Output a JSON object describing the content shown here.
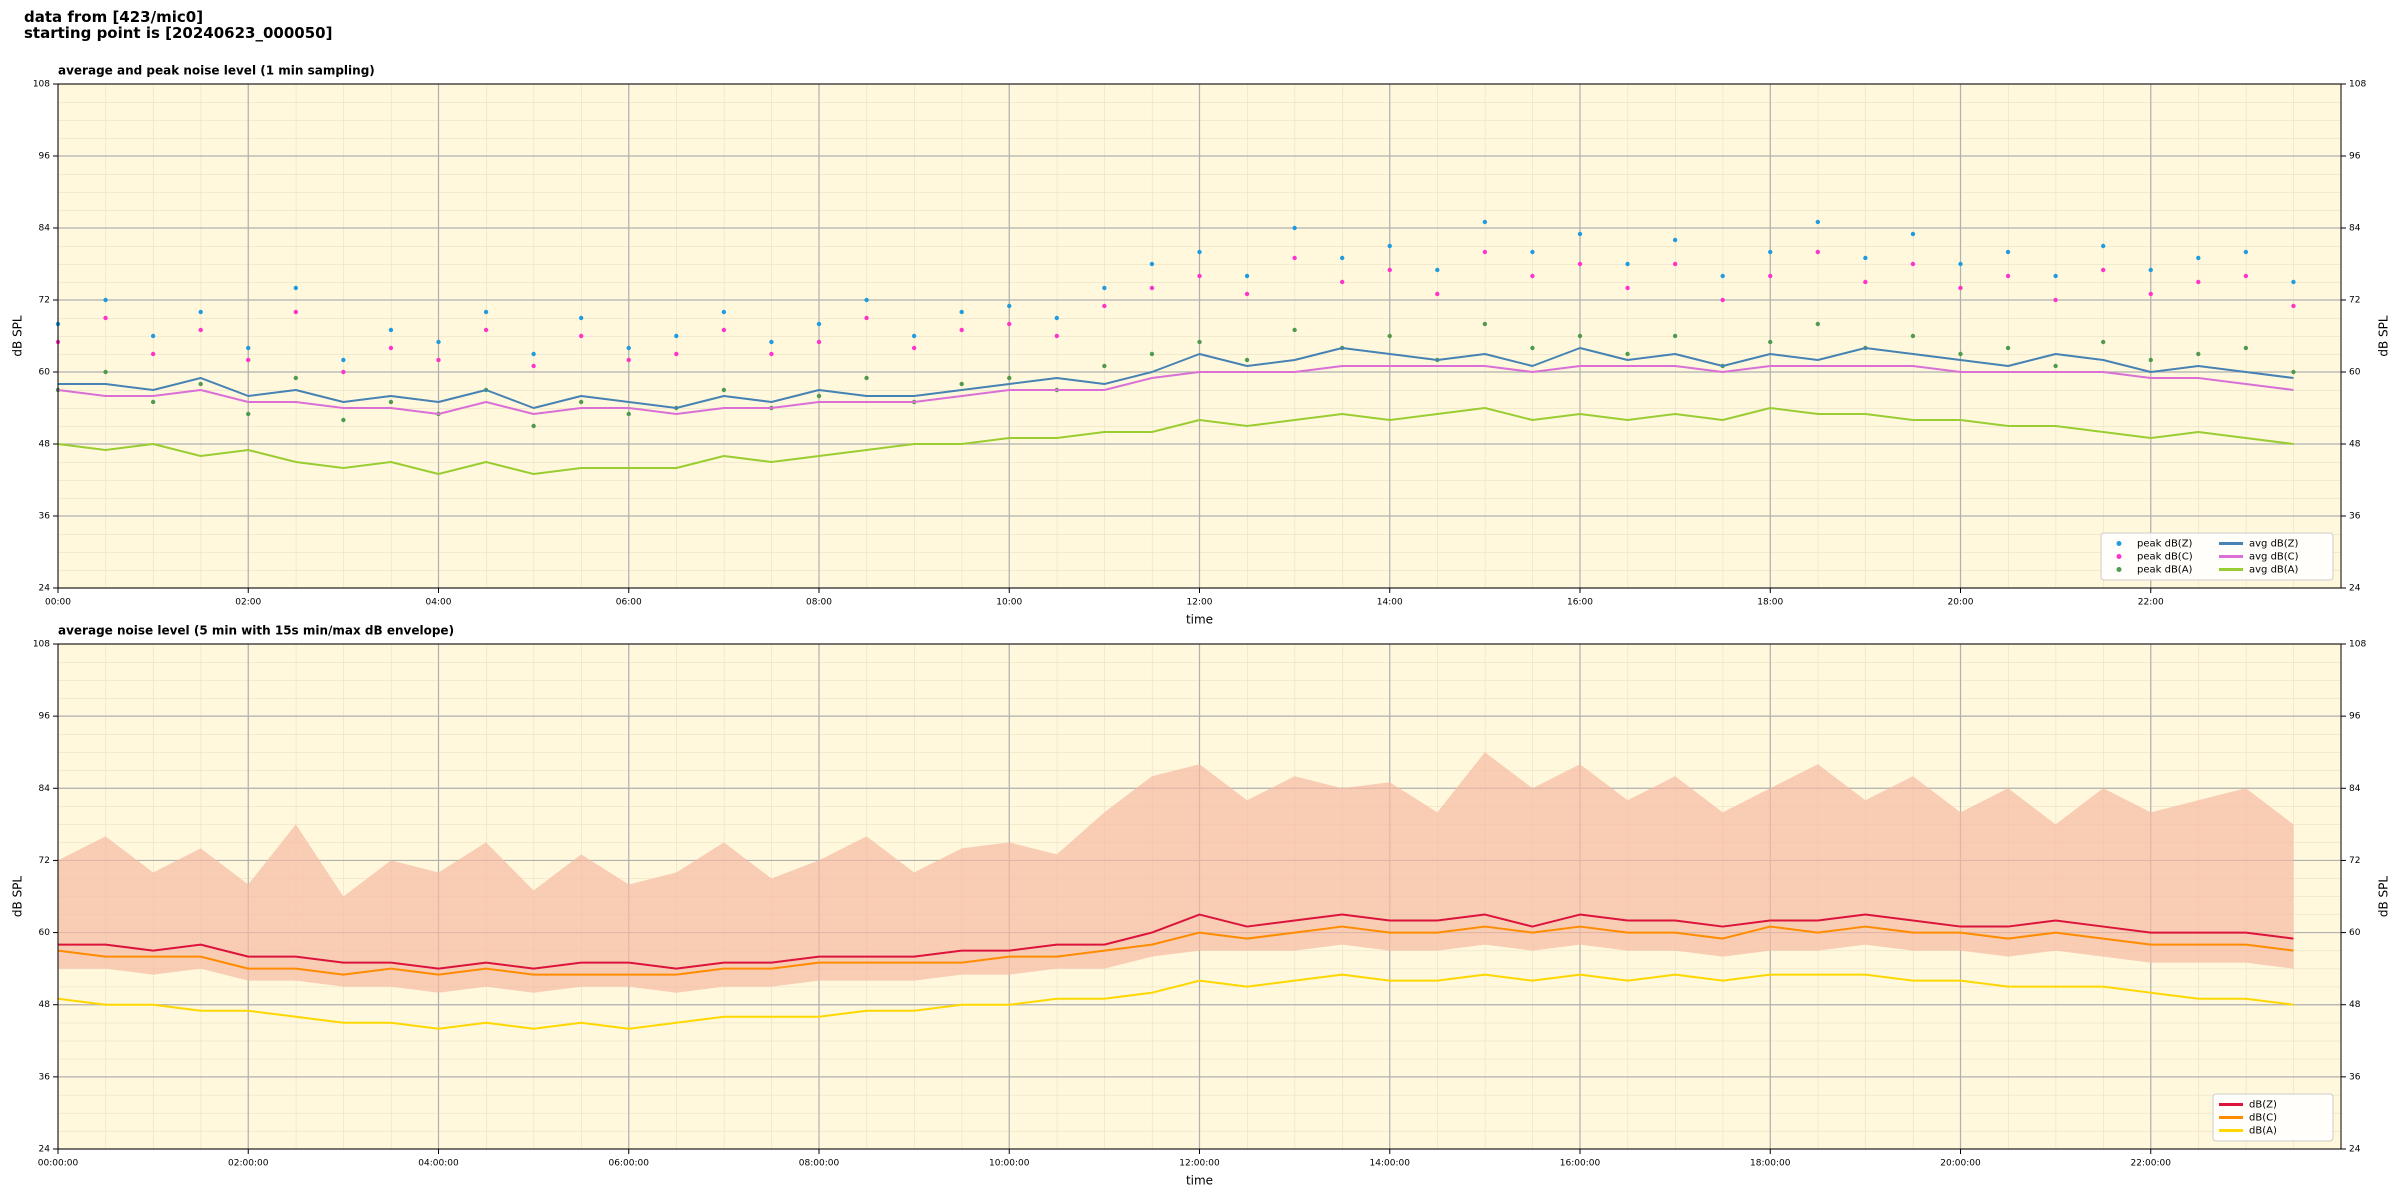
{
  "header": {
    "lines": [
      "data from [423/mic0]",
      "starting point is [20240623_000050]"
    ]
  },
  "chart_data": [
    {
      "type": "line",
      "title": "average and peak noise level (1 min sampling)",
      "xlabel": "time",
      "ylabel": "dB SPL",
      "xlim": [
        0,
        1440
      ],
      "ylim": [
        24,
        108
      ],
      "y2lim": [
        24,
        108
      ],
      "yticks": [
        24,
        36,
        48,
        60,
        72,
        84,
        96,
        108
      ],
      "y2ticks": [
        24,
        36,
        48,
        60,
        72,
        84,
        96,
        108
      ],
      "xticks": [
        {
          "value": 0,
          "label": "00:00"
        },
        {
          "value": 120,
          "label": "02:00"
        },
        {
          "value": 240,
          "label": "04:00"
        },
        {
          "value": 360,
          "label": "06:00"
        },
        {
          "value": 480,
          "label": "08:00"
        },
        {
          "value": 600,
          "label": "10:00"
        },
        {
          "value": 720,
          "label": "12:00"
        },
        {
          "value": 840,
          "label": "14:00"
        },
        {
          "value": 960,
          "label": "16:00"
        },
        {
          "value": 1080,
          "label": "18:00"
        },
        {
          "value": 1200,
          "label": "20:00"
        },
        {
          "value": 1320,
          "label": "22:00"
        }
      ],
      "grid": true,
      "background": "#fff8dc",
      "legend": "lower right",
      "legend_columns": 2,
      "x": [
        0,
        30,
        60,
        90,
        120,
        150,
        180,
        210,
        240,
        270,
        300,
        330,
        360,
        390,
        420,
        450,
        480,
        510,
        540,
        570,
        600,
        630,
        660,
        690,
        720,
        750,
        780,
        810,
        840,
        870,
        900,
        930,
        960,
        990,
        1020,
        1050,
        1080,
        1110,
        1140,
        1170,
        1200,
        1230,
        1260,
        1290,
        1320,
        1350,
        1380,
        1410
      ],
      "series": [
        {
          "name": "peak dB(Z)",
          "style": "scatter",
          "color": "#1f9be0",
          "values": [
            68,
            72,
            66,
            70,
            64,
            74,
            62,
            67,
            65,
            70,
            63,
            69,
            64,
            66,
            70,
            65,
            68,
            72,
            66,
            70,
            71,
            69,
            74,
            78,
            80,
            76,
            84,
            79,
            81,
            77,
            85,
            80,
            83,
            78,
            82,
            76,
            80,
            85,
            79,
            83,
            78,
            80,
            76,
            81,
            77,
            79,
            80,
            75
          ]
        },
        {
          "name": "peak dB(C)",
          "style": "scatter",
          "color": "#ff33cc",
          "values": [
            65,
            69,
            63,
            67,
            62,
            70,
            60,
            64,
            62,
            67,
            61,
            66,
            62,
            63,
            67,
            63,
            65,
            69,
            64,
            67,
            68,
            66,
            71,
            74,
            76,
            73,
            79,
            75,
            77,
            73,
            80,
            76,
            78,
            74,
            78,
            72,
            76,
            80,
            75,
            78,
            74,
            76,
            72,
            77,
            73,
            75,
            76,
            71
          ]
        },
        {
          "name": "peak dB(A)",
          "style": "scatter",
          "color": "#4f9a4f",
          "values": [
            57,
            60,
            55,
            58,
            53,
            59,
            52,
            55,
            53,
            57,
            51,
            55,
            53,
            54,
            57,
            54,
            56,
            59,
            55,
            58,
            59,
            57,
            61,
            63,
            65,
            62,
            67,
            64,
            66,
            62,
            68,
            64,
            66,
            63,
            66,
            61,
            65,
            68,
            64,
            66,
            63,
            64,
            61,
            65,
            62,
            63,
            64,
            60
          ]
        },
        {
          "name": "avg dB(Z)",
          "style": "line",
          "color": "#4682b4",
          "values": [
            58,
            58,
            57,
            59,
            56,
            57,
            55,
            56,
            55,
            57,
            54,
            56,
            55,
            54,
            56,
            55,
            57,
            56,
            56,
            57,
            58,
            59,
            58,
            60,
            63,
            61,
            62,
            64,
            63,
            62,
            63,
            61,
            64,
            62,
            63,
            61,
            63,
            62,
            64,
            63,
            62,
            61,
            63,
            62,
            60,
            61,
            60,
            59
          ]
        },
        {
          "name": "avg dB(C)",
          "style": "line",
          "color": "#da70d6",
          "values": [
            57,
            56,
            56,
            57,
            55,
            55,
            54,
            54,
            53,
            55,
            53,
            54,
            54,
            53,
            54,
            54,
            55,
            55,
            55,
            56,
            57,
            57,
            57,
            59,
            60,
            60,
            60,
            61,
            61,
            61,
            61,
            60,
            61,
            61,
            61,
            60,
            61,
            61,
            61,
            61,
            60,
            60,
            60,
            60,
            59,
            59,
            58,
            57
          ]
        },
        {
          "name": "avg dB(A)",
          "style": "line",
          "color": "#9acd32",
          "values": [
            48,
            47,
            48,
            46,
            47,
            45,
            44,
            45,
            43,
            45,
            43,
            44,
            44,
            44,
            46,
            45,
            46,
            47,
            48,
            48,
            49,
            49,
            50,
            50,
            52,
            51,
            52,
            53,
            52,
            53,
            54,
            52,
            53,
            52,
            53,
            52,
            54,
            53,
            53,
            52,
            52,
            51,
            51,
            50,
            49,
            50,
            49,
            48
          ]
        }
      ]
    },
    {
      "type": "line",
      "title": "average noise level (5 min with 15s min/max dB envelope)",
      "xlabel": "time",
      "ylabel": "dB SPL",
      "xlim": [
        0,
        1440
      ],
      "ylim": [
        24,
        108
      ],
      "y2lim": [
        24,
        108
      ],
      "yticks": [
        24,
        36,
        48,
        60,
        72,
        84,
        96,
        108
      ],
      "y2ticks": [
        24,
        36,
        48,
        60,
        72,
        84,
        96,
        108
      ],
      "xticks": [
        {
          "value": 0,
          "label": "00:00:00"
        },
        {
          "value": 120,
          "label": "02:00:00"
        },
        {
          "value": 240,
          "label": "04:00:00"
        },
        {
          "value": 360,
          "label": "06:00:00"
        },
        {
          "value": 480,
          "label": "08:00:00"
        },
        {
          "value": 600,
          "label": "10:00:00"
        },
        {
          "value": 720,
          "label": "12:00:00"
        },
        {
          "value": 840,
          "label": "14:00:00"
        },
        {
          "value": 960,
          "label": "16:00:00"
        },
        {
          "value": 1080,
          "label": "18:00:00"
        },
        {
          "value": 1200,
          "label": "20:00:00"
        },
        {
          "value": 1320,
          "label": "22:00:00"
        }
      ],
      "grid": true,
      "background": "#fff8dc",
      "legend": "lower right",
      "legend_columns": 1,
      "x": [
        0,
        30,
        60,
        90,
        120,
        150,
        180,
        210,
        240,
        270,
        300,
        330,
        360,
        390,
        420,
        450,
        480,
        510,
        540,
        570,
        600,
        630,
        660,
        690,
        720,
        750,
        780,
        810,
        840,
        870,
        900,
        930,
        960,
        990,
        1020,
        1050,
        1080,
        1110,
        1140,
        1170,
        1200,
        1230,
        1260,
        1290,
        1320,
        1350,
        1380,
        1410
      ],
      "envelope": {
        "color": "#f6b9a3",
        "min": [
          54,
          54,
          53,
          54,
          52,
          52,
          51,
          51,
          50,
          51,
          50,
          51,
          51,
          50,
          51,
          51,
          52,
          52,
          52,
          53,
          53,
          54,
          54,
          56,
          57,
          57,
          57,
          58,
          57,
          57,
          58,
          57,
          58,
          57,
          57,
          56,
          57,
          57,
          58,
          57,
          57,
          56,
          57,
          56,
          55,
          55,
          55,
          54
        ],
        "max": [
          72,
          76,
          70,
          74,
          68,
          78,
          66,
          72,
          70,
          75,
          67,
          73,
          68,
          70,
          75,
          69,
          72,
          76,
          70,
          74,
          75,
          73,
          80,
          86,
          88,
          82,
          86,
          84,
          85,
          80,
          90,
          84,
          88,
          82,
          86,
          80,
          84,
          88,
          82,
          86,
          80,
          84,
          78,
          84,
          80,
          82,
          84,
          78
        ]
      },
      "series": [
        {
          "name": "dB(Z)",
          "style": "line",
          "color": "#dc143c",
          "values": [
            58,
            58,
            57,
            58,
            56,
            56,
            55,
            55,
            54,
            55,
            54,
            55,
            55,
            54,
            55,
            55,
            56,
            56,
            56,
            57,
            57,
            58,
            58,
            60,
            63,
            61,
            62,
            63,
            62,
            62,
            63,
            61,
            63,
            62,
            62,
            61,
            62,
            62,
            63,
            62,
            61,
            61,
            62,
            61,
            60,
            60,
            60,
            59
          ]
        },
        {
          "name": "dB(C)",
          "style": "line",
          "color": "#ff8c00",
          "values": [
            57,
            56,
            56,
            56,
            54,
            54,
            53,
            54,
            53,
            54,
            53,
            53,
            53,
            53,
            54,
            54,
            55,
            55,
            55,
            55,
            56,
            56,
            57,
            58,
            60,
            59,
            60,
            61,
            60,
            60,
            61,
            60,
            61,
            60,
            60,
            59,
            61,
            60,
            61,
            60,
            60,
            59,
            60,
            59,
            58,
            58,
            58,
            57
          ]
        },
        {
          "name": "dB(A)",
          "style": "line",
          "color": "#ffd700",
          "values": [
            49,
            48,
            48,
            47,
            47,
            46,
            45,
            45,
            44,
            45,
            44,
            45,
            44,
            45,
            46,
            46,
            46,
            47,
            47,
            48,
            48,
            49,
            49,
            50,
            52,
            51,
            52,
            53,
            52,
            52,
            53,
            52,
            53,
            52,
            53,
            52,
            53,
            53,
            53,
            52,
            52,
            51,
            51,
            51,
            50,
            49,
            49,
            48
          ]
        }
      ]
    }
  ]
}
